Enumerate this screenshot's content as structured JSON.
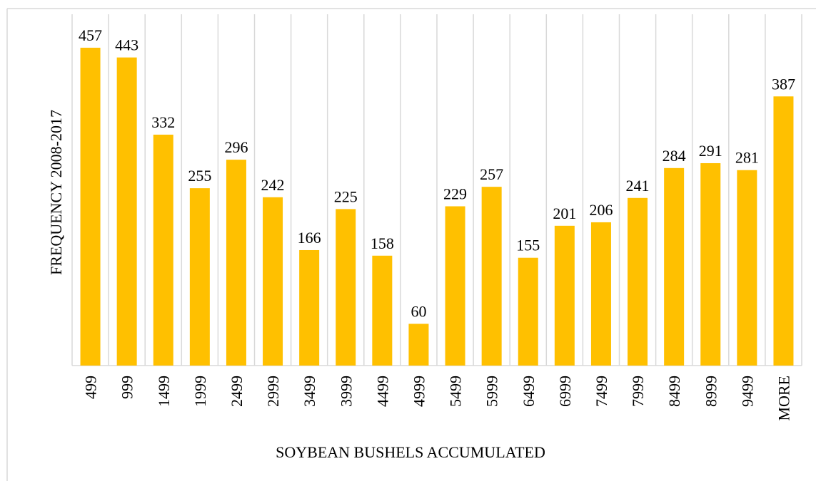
{
  "chart_data": {
    "type": "bar",
    "x_label": "SOYBEAN BUSHELS ACCUMULATED",
    "y_label": "FREQUENCY 2008-2017",
    "categories": [
      "499",
      "999",
      "1499",
      "1999",
      "2499",
      "2999",
      "3499",
      "3999",
      "4499",
      "4999",
      "5499",
      "5999",
      "6499",
      "6999",
      "7499",
      "7999",
      "8499",
      "8999",
      "9499",
      "MORE"
    ],
    "values": [
      457,
      443,
      332,
      255,
      296,
      242,
      166,
      225,
      158,
      60,
      229,
      257,
      155,
      201,
      206,
      241,
      284,
      291,
      281,
      387
    ],
    "color": "#ffc000",
    "ylim": [
      0,
      500
    ],
    "grid": true
  }
}
